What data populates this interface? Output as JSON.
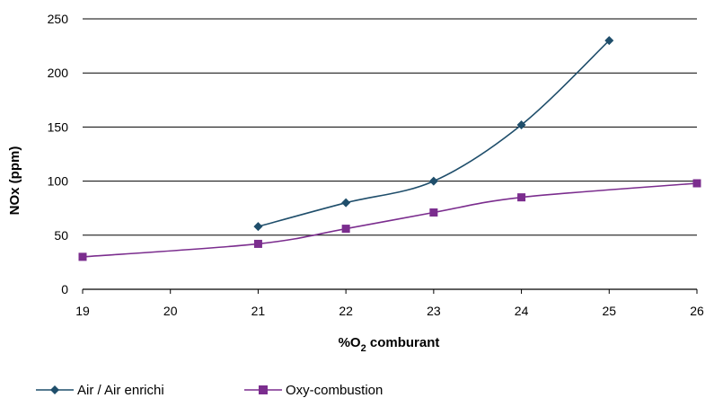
{
  "chart_data": {
    "type": "line",
    "xlabel": "%O",
    "xlabel_sub": "2",
    "xlabel_suffix": " comburant",
    "ylabel": "NOx (ppm)",
    "xlim": [
      19,
      26
    ],
    "ylim": [
      0,
      250
    ],
    "x_ticks": [
      19,
      20,
      21,
      22,
      23,
      24,
      25,
      26
    ],
    "y_ticks": [
      0,
      50,
      100,
      150,
      200,
      250
    ],
    "grid": "horizontal",
    "legend": "bottom-left",
    "series": [
      {
        "name": "Air / Air enrichi",
        "color": "#1f4e6b",
        "marker": "diamond",
        "points": [
          [
            21,
            58
          ],
          [
            22,
            80
          ],
          [
            23,
            100
          ],
          [
            24,
            152
          ],
          [
            25,
            230
          ]
        ]
      },
      {
        "name": "Oxy-combustion",
        "color": "#7b2d8e",
        "marker": "square",
        "points": [
          [
            19,
            30
          ],
          [
            21,
            42
          ],
          [
            22,
            56
          ],
          [
            23,
            71
          ],
          [
            24,
            85
          ],
          [
            26,
            98
          ]
        ]
      }
    ]
  }
}
